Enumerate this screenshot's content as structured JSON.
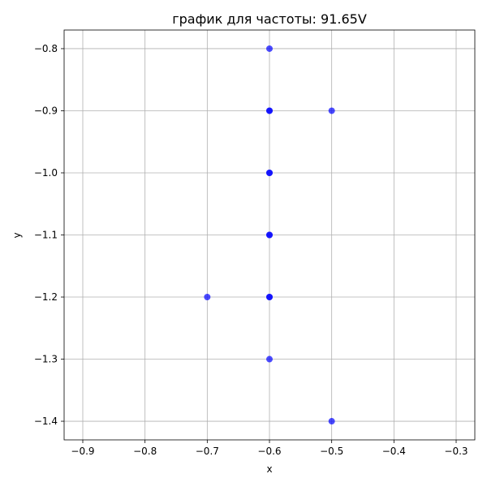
{
  "chart_data": {
    "type": "scatter",
    "title": "график для частоты: 91.65V",
    "xlabel": "x",
    "ylabel": "y",
    "xlim": [
      -0.93,
      -0.27
    ],
    "ylim": [
      -1.43,
      -0.77
    ],
    "xticks": [
      -0.9,
      -0.8,
      -0.7,
      -0.6,
      -0.5,
      -0.4,
      -0.3
    ],
    "xtick_labels": [
      "−0.9",
      "−0.8",
      "−0.7",
      "−0.6",
      "−0.5",
      "−0.4",
      "−0.3"
    ],
    "yticks": [
      -0.8,
      -0.9,
      -1.0,
      -1.1,
      -1.2,
      -1.3,
      -1.4
    ],
    "ytick_labels": [
      "−0.8",
      "−0.9",
      "−1.0",
      "−1.1",
      "−1.2",
      "−1.3",
      "−1.4"
    ],
    "grid": true,
    "marker_color": "#0000ff",
    "marker_opacity": 0.7,
    "points": [
      {
        "x": -0.6,
        "y": -0.8
      },
      {
        "x": -0.6,
        "y": -0.9
      },
      {
        "x": -0.6,
        "y": -0.9
      },
      {
        "x": -0.5,
        "y": -0.9
      },
      {
        "x": -0.6,
        "y": -1.0
      },
      {
        "x": -0.6,
        "y": -1.0
      },
      {
        "x": -0.6,
        "y": -1.1
      },
      {
        "x": -0.6,
        "y": -1.1
      },
      {
        "x": -0.7,
        "y": -1.2
      },
      {
        "x": -0.6,
        "y": -1.2
      },
      {
        "x": -0.6,
        "y": -1.2
      },
      {
        "x": -0.6,
        "y": -1.3
      },
      {
        "x": -0.5,
        "y": -1.4
      }
    ]
  }
}
